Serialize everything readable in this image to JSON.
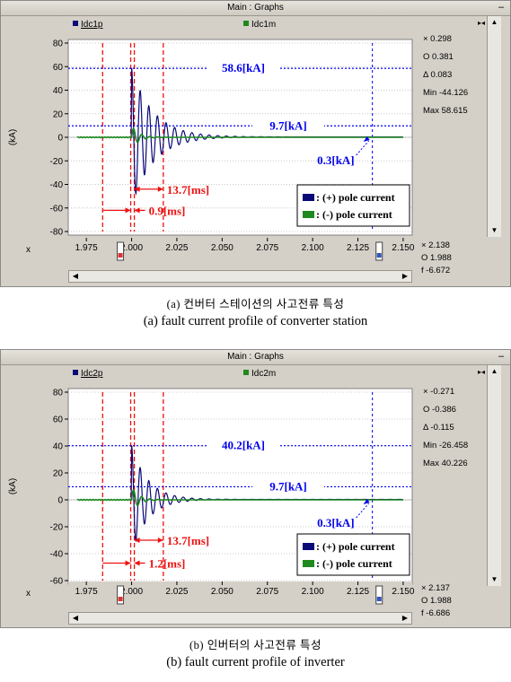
{
  "panels": [
    {
      "window_title": "Main : Graphs",
      "min_glyph": "–",
      "series_labels": [
        "Idc1p",
        "Idc1m"
      ],
      "readout": {
        "x": "× 0.298",
        "o": "O 0.381",
        "d": "Δ 0.083",
        "min": "Min -44.126",
        "max": "Max 58.615"
      },
      "bottom_readout": {
        "x": "× 2.138",
        "o": "O 1.988",
        "f": "f -6.672"
      },
      "x_axis_label": "x",
      "caption_kr": "(a) 컨버터 스테이션의 사고전류 특성",
      "caption_en": "(a)  fault current profile of converter station"
    },
    {
      "window_title": "Main : Graphs",
      "min_glyph": "–",
      "series_labels": [
        "Idc2p",
        "Idc2m"
      ],
      "readout": {
        "x": "× -0.271",
        "o": "O -0.386",
        "d": "Δ -0.115",
        "min": "Min -26.458",
        "max": "Max 40.226"
      },
      "bottom_readout": {
        "x": "× 2.137",
        "o": "O 1.988",
        "f": "f -6.686"
      },
      "x_axis_label": "x",
      "caption_kr": "(b) 인버터의 사고전류 특성",
      "caption_en": "(b)  fault current profile of inverter"
    }
  ],
  "chart_data": [
    {
      "type": "line",
      "ylabel": "(kA)",
      "xlabel": "",
      "xlim": [
        1.965,
        2.155
      ],
      "ylim": [
        -80,
        80
      ],
      "x_ticks": [
        "1.975",
        "2.000",
        "2.025",
        "2.050",
        "2.075",
        "2.100",
        "2.125",
        "2.150"
      ],
      "y_ticks": [
        "80",
        "60",
        "40",
        "20",
        "0",
        "-20",
        "-40",
        "-60",
        "-80"
      ],
      "grid": true,
      "colors": {
        "pos": "#0a0a78",
        "neg": "#1e8a1e",
        "annot_blue": "#0000ee",
        "annot_red": "#ee1111"
      },
      "series": [
        {
          "name": "Idc1p",
          "role": "pos",
          "fault_t": 2.0,
          "peak": 58.6,
          "tau": 0.012,
          "freq": 210,
          "start_t": 1.97,
          "end_t": 2.15
        },
        {
          "name": "Idc1m",
          "role": "neg",
          "fault_t": 2.0,
          "peak": 9.7,
          "tau": 0.004,
          "freq": 210,
          "start_t": 1.97,
          "end_t": 2.15
        }
      ],
      "hlines": [
        {
          "y": 58.6,
          "label": "58.6[kA]"
        },
        {
          "y": 9.7,
          "label": "9.7[kA]"
        }
      ],
      "steady_marker": {
        "t": 2.133,
        "label": "0.3[kA]"
      },
      "red_vlines": [
        1.984,
        1.9995,
        2.0015,
        2.0175
      ],
      "ms_labels": [
        {
          "label": "13.7[ms]",
          "y": -44
        },
        {
          "label": "0.9[ms]",
          "y": -62
        }
      ],
      "legend": [
        "(+) pole current",
        "(-) pole current"
      ]
    },
    {
      "type": "line",
      "ylabel": "(kA)",
      "xlabel": "",
      "xlim": [
        1.965,
        2.155
      ],
      "ylim": [
        -60,
        80
      ],
      "x_ticks": [
        "1.975",
        "2.000",
        "2.025",
        "2.050",
        "2.075",
        "2.100",
        "2.125",
        "2.150"
      ],
      "y_ticks": [
        "80",
        "60",
        "40",
        "20",
        "0",
        "-20",
        "-40",
        "-60"
      ],
      "grid": true,
      "colors": {
        "pos": "#0a0a78",
        "neg": "#1e8a1e",
        "annot_blue": "#0000ee",
        "annot_red": "#ee1111"
      },
      "series": [
        {
          "name": "Idc2p",
          "role": "pos",
          "fault_t": 2.0,
          "peak": 40.2,
          "tau": 0.009,
          "freq": 210,
          "start_t": 1.97,
          "end_t": 2.15
        },
        {
          "name": "Idc2m",
          "role": "neg",
          "fault_t": 2.0,
          "peak": 9.7,
          "tau": 0.004,
          "freq": 210,
          "start_t": 1.97,
          "end_t": 2.15
        }
      ],
      "hlines": [
        {
          "y": 40.2,
          "label": "40.2[kA]"
        },
        {
          "y": 9.7,
          "label": "9.7[kA]"
        }
      ],
      "steady_marker": {
        "t": 2.133,
        "label": "0.3[kA]"
      },
      "red_vlines": [
        1.984,
        1.9995,
        2.0015,
        2.0175
      ],
      "ms_labels": [
        {
          "label": "13.7[ms]",
          "y": -30
        },
        {
          "label": "1.2[ms]",
          "y": -47
        }
      ],
      "legend": [
        "(+) pole current",
        "(-) pole current"
      ]
    }
  ]
}
